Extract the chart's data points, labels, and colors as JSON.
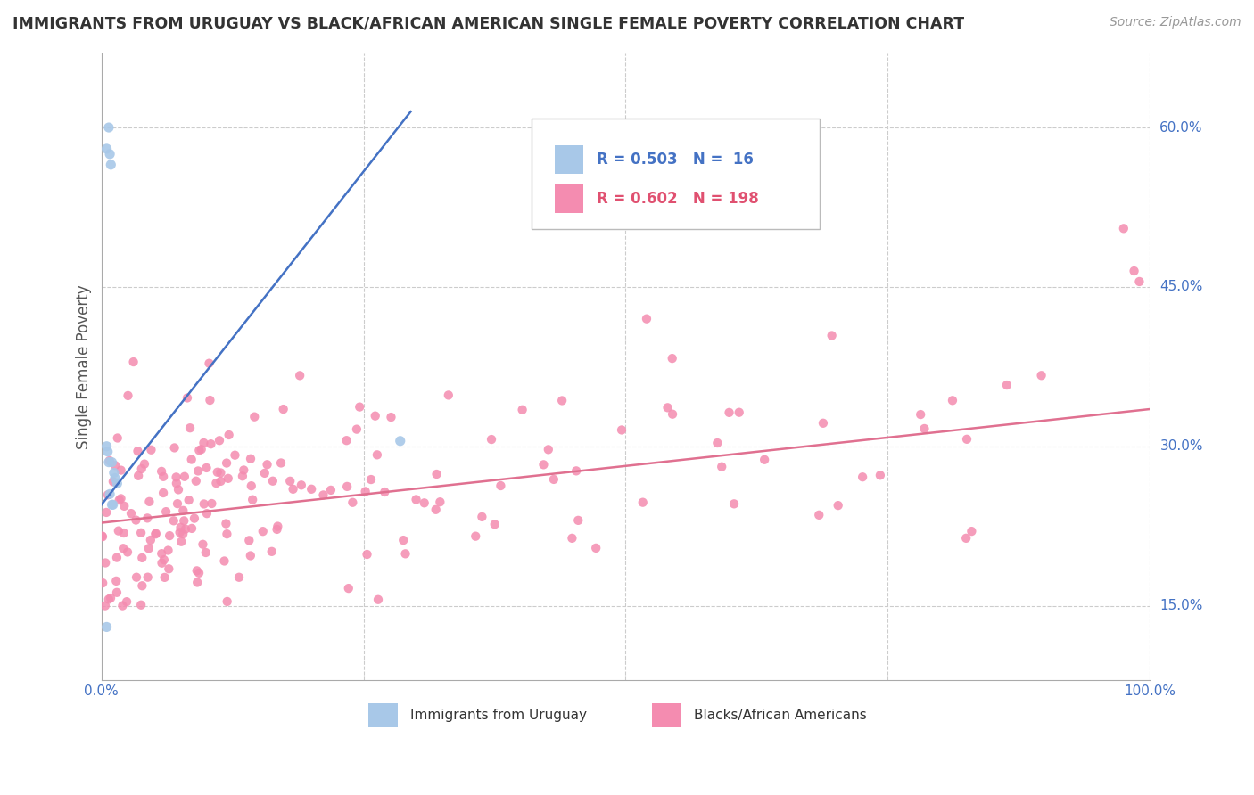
{
  "title": "IMMIGRANTS FROM URUGUAY VS BLACK/AFRICAN AMERICAN SINGLE FEMALE POVERTY CORRELATION CHART",
  "source": "Source: ZipAtlas.com",
  "ylabel": "Single Female Poverty",
  "xlim": [
    0.0,
    1.0
  ],
  "ylim": [
    0.08,
    0.67
  ],
  "ytick_vals": [
    0.15,
    0.3,
    0.45,
    0.6
  ],
  "ytick_labels": [
    "15.0%",
    "30.0%",
    "45.0%",
    "60.0%"
  ],
  "xtick_vals": [
    0.0,
    1.0
  ],
  "xtick_labels": [
    "0.0%",
    "100.0%"
  ],
  "color_blue": "#a8c8e8",
  "color_pink": "#f48cb0",
  "color_blue_line": "#4472c4",
  "color_pink_line": "#e07090",
  "color_blue_text": "#4472c4",
  "color_pink_text": "#e05070",
  "color_ytick": "#4472c4",
  "color_xtick": "#4472c4",
  "grid_color": "#cccccc",
  "background_color": "#ffffff",
  "blue_line_x0": 0.0,
  "blue_line_y0": 0.245,
  "blue_line_x1": 0.295,
  "blue_line_y1": 0.615,
  "pink_line_x0": 0.0,
  "pink_line_y0": 0.228,
  "pink_line_x1": 1.0,
  "pink_line_y1": 0.335
}
